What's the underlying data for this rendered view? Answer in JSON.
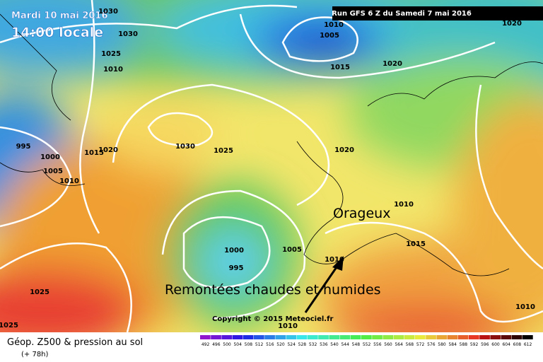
{
  "header": {
    "date": "Mardi 10 mai 2016",
    "time": "14:00 locale",
    "run": "Run GFS 6 Z du Samedi 7 mai 2016"
  },
  "annotations": {
    "storm": "Orageux",
    "warm": "Remontées chaudes et humides"
  },
  "isobar_labels": [
    1030,
    1030,
    1025,
    1010,
    1010,
    1005,
    1015,
    1020,
    1020,
    995,
    1000,
    1005,
    1010,
    1015,
    1020,
    1030,
    1025,
    1020,
    1010,
    1015,
    1000,
    995,
    1005,
    1010,
    1010,
    1025,
    1025,
    1010
  ],
  "footer": {
    "title": "Géop. Z500 & pression au sol",
    "lead": "(+ 78h)",
    "copyright": "Copyright © 2015 Meteociel.fr"
  },
  "scale": [
    492,
    496,
    500,
    504,
    508,
    512,
    516,
    520,
    524,
    528,
    532,
    536,
    540,
    544,
    548,
    552,
    556,
    560,
    564,
    568,
    572,
    576,
    580,
    584,
    588,
    592,
    596,
    600,
    604,
    608,
    612
  ]
}
